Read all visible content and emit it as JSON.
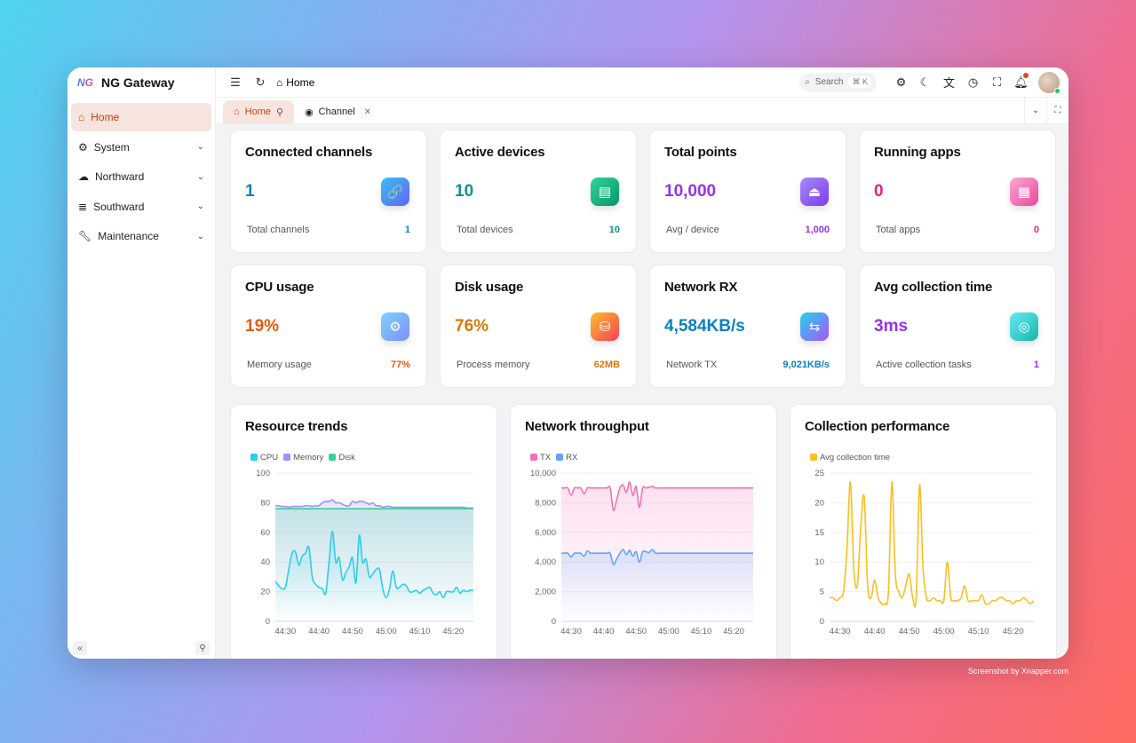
{
  "app": {
    "logo": "NG",
    "name": "NG Gateway"
  },
  "sidebar": {
    "items": [
      {
        "label": "Home",
        "icon": "home-icon",
        "active": true
      },
      {
        "label": "System",
        "icon": "gears-icon"
      },
      {
        "label": "Northward",
        "icon": "cloud-upload-icon"
      },
      {
        "label": "Southward",
        "icon": "server-icon"
      },
      {
        "label": "Maintenance",
        "icon": "wrench-icon"
      }
    ]
  },
  "header": {
    "breadcrumb": "Home",
    "search_placeholder": "Search",
    "search_shortcut": "⌘ K"
  },
  "tabs": [
    {
      "label": "Home",
      "active": true,
      "pinned": true
    },
    {
      "label": "Channel",
      "closable": true
    }
  ],
  "stats": [
    {
      "title": "Connected channels",
      "value": "1",
      "sub_label": "Total channels",
      "sub_value": "1",
      "color": "#0e7fc0",
      "icon": "link-icon",
      "icon_bg": "linear-gradient(135deg,#38bdf8,#6366f1)",
      "glyph": "🔗"
    },
    {
      "title": "Active devices",
      "value": "10",
      "sub_label": "Total devices",
      "sub_value": "10",
      "color": "#0d9488",
      "icon": "device-icon",
      "icon_bg": "linear-gradient(135deg,#34d399,#059669)",
      "glyph": "▤"
    },
    {
      "title": "Total points",
      "value": "10,000",
      "sub_label": "Avg / device",
      "sub_value": "1,000",
      "color": "#9333ea",
      "icon": "eject-icon",
      "icon_bg": "linear-gradient(135deg,#a78bfa,#7c3aed)",
      "glyph": "⏏"
    },
    {
      "title": "Running apps",
      "value": "0",
      "sub_label": "Total apps",
      "sub_value": "0",
      "color": "#db2777",
      "icon": "apps-icon",
      "icon_bg": "linear-gradient(135deg,#f9a8d4,#ec4899)",
      "glyph": "▦"
    },
    {
      "title": "CPU usage",
      "value": "19%",
      "sub_label": "Memory usage",
      "sub_value": "77%",
      "color": "#ea580c",
      "icon": "cpu-icon",
      "icon_bg": "linear-gradient(135deg,#7dd3fc,#818cf8)",
      "glyph": "⚙"
    },
    {
      "title": "Disk usage",
      "value": "76%",
      "sub_label": "Process memory",
      "sub_value": "62MB",
      "color": "#d97706",
      "icon": "database-icon",
      "icon_bg": "linear-gradient(135deg,#fbbf24,#f43f5e)",
      "glyph": "⛁"
    },
    {
      "title": "Network RX",
      "value": "4,584KB/s",
      "sub_label": "Network TX",
      "sub_value": "9,021KB/s",
      "color": "#0e7fc0",
      "icon": "transfer-icon",
      "icon_bg": "linear-gradient(135deg,#22d3ee,#a855f7)",
      "glyph": "⇆"
    },
    {
      "title": "Avg collection time",
      "value": "3ms",
      "sub_label": "Active collection tasks",
      "sub_value": "1",
      "color": "#9333ea",
      "icon": "speed-icon",
      "icon_bg": "linear-gradient(135deg,#67e8f9,#14b8a6)",
      "glyph": "◎"
    }
  ],
  "chart_data": [
    {
      "type": "area",
      "title": "Resource trends",
      "legend_position": "top-left",
      "grid": true,
      "ylim": [
        0,
        100
      ],
      "yticks": [
        "0",
        "20",
        "40",
        "60",
        "80",
        "100"
      ],
      "xticks": [
        "44:30",
        "44:40",
        "44:50",
        "45:00",
        "45:10",
        "45:20"
      ],
      "x": [
        "44:27",
        "44:28",
        "44:29",
        "44:30",
        "44:31",
        "44:32",
        "44:33",
        "44:34",
        "44:35",
        "44:36",
        "44:37",
        "44:38",
        "44:39",
        "44:40",
        "44:41",
        "44:42",
        "44:43",
        "44:44",
        "44:45",
        "44:46",
        "44:47",
        "44:48",
        "44:49",
        "44:50",
        "44:51",
        "44:52",
        "44:53",
        "44:54",
        "44:55",
        "44:56",
        "44:57",
        "44:58",
        "44:59",
        "45:00",
        "45:01",
        "45:02",
        "45:03",
        "45:04",
        "45:05",
        "45:06",
        "45:07",
        "45:08",
        "45:09",
        "45:10",
        "45:11",
        "45:12",
        "45:13",
        "45:14",
        "45:15",
        "45:16",
        "45:17",
        "45:18",
        "45:19",
        "45:20",
        "45:21",
        "45:22",
        "45:23",
        "45:24",
        "45:25",
        "45:26"
      ],
      "series": [
        {
          "name": "CPU",
          "color": "#22d3ee",
          "values": [
            27,
            24,
            22,
            23,
            35,
            46,
            47,
            38,
            44,
            46,
            50,
            30,
            25,
            23,
            22,
            19,
            40,
            61,
            40,
            43,
            28,
            33,
            37,
            43,
            26,
            58,
            40,
            42,
            30,
            32,
            35,
            35,
            22,
            16,
            22,
            34,
            23,
            23,
            25,
            24,
            20,
            20,
            21,
            19,
            21,
            22,
            23,
            19,
            18,
            20,
            16,
            20,
            20,
            20,
            23,
            19,
            21,
            20,
            21,
            21
          ]
        },
        {
          "name": "Memory",
          "color": "#a78bfa",
          "values": [
            78,
            78,
            77.5,
            77.5,
            77,
            77.5,
            77.5,
            77.5,
            77.5,
            78,
            78,
            77.5,
            78,
            78,
            80,
            81,
            81,
            82,
            80,
            80,
            79,
            78,
            78,
            81,
            80,
            81,
            81,
            80,
            79,
            80,
            78,
            78,
            77,
            77.5,
            77.5,
            77,
            77,
            77,
            77,
            77,
            77,
            77,
            77,
            77,
            77,
            77,
            77,
            77,
            77,
            77,
            77,
            77,
            77,
            77,
            77,
            77,
            77,
            76.5,
            76.5,
            76.5
          ]
        },
        {
          "name": "Disk",
          "color": "#34d399",
          "values": [
            76,
            76,
            76,
            76,
            76,
            76,
            76,
            76,
            76,
            76,
            76,
            76,
            76,
            76,
            76,
            76,
            76,
            76,
            76,
            76,
            76,
            76,
            76,
            76,
            76,
            76,
            76,
            76,
            76,
            76,
            76,
            76,
            76,
            76,
            76,
            76,
            76,
            76,
            76,
            76,
            76,
            76,
            76,
            76,
            76,
            76,
            76,
            76,
            76,
            76,
            76,
            76,
            76,
            76,
            76,
            76,
            76,
            76,
            76,
            76
          ]
        }
      ]
    },
    {
      "type": "area",
      "title": "Network throughput",
      "legend_position": "top-left",
      "grid": true,
      "ylim": [
        0,
        10000
      ],
      "yticks": [
        "0",
        "2,000",
        "4,000",
        "6,000",
        "8,000",
        "10,000"
      ],
      "xticks": [
        "44:30",
        "44:40",
        "44:50",
        "45:00",
        "45:10",
        "45:20"
      ],
      "series": [
        {
          "name": "TX",
          "color": "#f472b6",
          "values": [
            9000,
            9000,
            9000,
            8500,
            9000,
            9000,
            9000,
            8600,
            9000,
            9000,
            9000,
            9000,
            9000,
            9000,
            9000,
            9000,
            7500,
            8200,
            9000,
            9200,
            8700,
            9400,
            8500,
            9100,
            7700,
            9000,
            9000,
            9050,
            9100,
            9000,
            9000,
            9000,
            9000,
            9000,
            9000,
            9000,
            9000,
            9000,
            9000,
            9000,
            9000,
            9000,
            9000,
            9000,
            9000,
            9000,
            9000,
            9000,
            9000,
            9000,
            9000,
            9000,
            9000,
            9000,
            9000,
            9000,
            9000,
            9000,
            9000,
            9000
          ]
        },
        {
          "name": "RX",
          "color": "#60a5fa",
          "values": [
            4600,
            4600,
            4600,
            4350,
            4600,
            4600,
            4600,
            4400,
            4750,
            4600,
            4600,
            4600,
            4600,
            4600,
            4600,
            4600,
            3850,
            4200,
            4600,
            4850,
            4500,
            4800,
            4400,
            4700,
            4000,
            4700,
            4700,
            4650,
            4850,
            4600,
            4600,
            4600,
            4600,
            4600,
            4600,
            4600,
            4600,
            4600,
            4600,
            4600,
            4600,
            4600,
            4600,
            4600,
            4600,
            4600,
            4600,
            4600,
            4600,
            4600,
            4600,
            4600,
            4600,
            4600,
            4600,
            4600,
            4600,
            4600,
            4600,
            4600
          ]
        }
      ]
    },
    {
      "type": "line",
      "title": "Collection performance",
      "legend_position": "top-left",
      "grid": true,
      "ylim": [
        0,
        25
      ],
      "yticks": [
        "0",
        "5",
        "10",
        "15",
        "20",
        "25"
      ],
      "xticks": [
        "44:30",
        "44:40",
        "44:50",
        "45:00",
        "45:10",
        "45:20"
      ],
      "series": [
        {
          "name": "Avg collection time",
          "color": "#fbbf24",
          "values": [
            4,
            4,
            3.5,
            4,
            5,
            12,
            23.5,
            9,
            6,
            16,
            21,
            6,
            4,
            7,
            4,
            3,
            3,
            5,
            23.5,
            8,
            5,
            4,
            6,
            8,
            4,
            4,
            23,
            9,
            4,
            3.5,
            4,
            3.5,
            3.5,
            3.5,
            10,
            4,
            3.5,
            3.5,
            4,
            6,
            3.5,
            3.5,
            3.5,
            3.5,
            4.5,
            3,
            3,
            3.5,
            3.5,
            4,
            4,
            3.5,
            3.5,
            3,
            3.5,
            3.5,
            4,
            3.5,
            3,
            3.5
          ]
        }
      ]
    }
  ],
  "watermark": "Screenshot by Xnapper.com"
}
